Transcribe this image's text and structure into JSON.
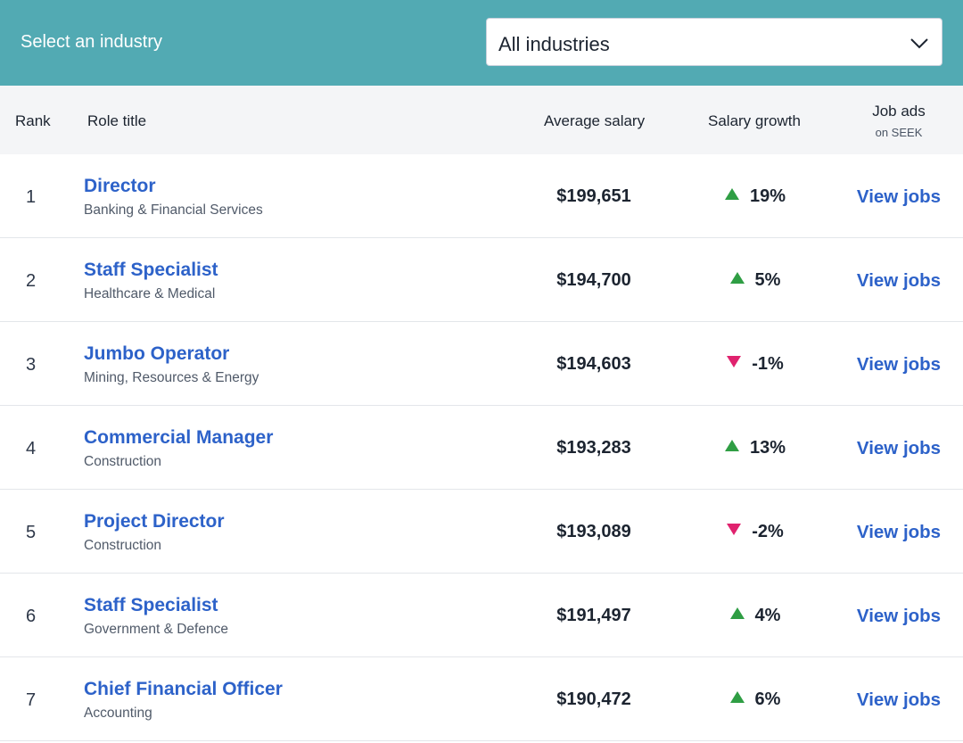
{
  "filter": {
    "label": "Select an industry",
    "selected": "All industries",
    "chevron_icon": "chevron-down-icon"
  },
  "table": {
    "headers": {
      "rank": "Rank",
      "role": "Role title",
      "salary": "Average salary",
      "growth": "Salary growth",
      "jobs": "Job ads",
      "jobs_sub": "on SEEK"
    },
    "rows": [
      {
        "rank": "1",
        "title": "Director",
        "industry": "Banking & Financial Services",
        "salary": "$199,651",
        "trend": "up",
        "growth": "19%",
        "link": "View jobs"
      },
      {
        "rank": "2",
        "title": "Staff Specialist",
        "industry": "Healthcare & Medical",
        "salary": "$194,700",
        "trend": "up",
        "growth": "5%",
        "link": "View jobs"
      },
      {
        "rank": "3",
        "title": "Jumbo Operator",
        "industry": "Mining, Resources & Energy",
        "salary": "$194,603",
        "trend": "down",
        "growth": "-1%",
        "link": "View jobs"
      },
      {
        "rank": "4",
        "title": "Commercial Manager",
        "industry": "Construction",
        "salary": "$193,283",
        "trend": "up",
        "growth": "13%",
        "link": "View jobs"
      },
      {
        "rank": "5",
        "title": "Project Director",
        "industry": "Construction",
        "salary": "$193,089",
        "trend": "down",
        "growth": "-2%",
        "link": "View jobs"
      },
      {
        "rank": "6",
        "title": "Staff Specialist",
        "industry": "Government & Defence",
        "salary": "$191,497",
        "trend": "up",
        "growth": "4%",
        "link": "View jobs"
      },
      {
        "rank": "7",
        "title": "Chief Financial Officer",
        "industry": "Accounting",
        "salary": "$190,472",
        "trend": "up",
        "growth": "6%",
        "link": "View jobs"
      }
    ]
  },
  "colors": {
    "header_bg": "#52aab3",
    "link": "#2d62c9",
    "up": "#2f9e44",
    "down": "#e0226e"
  }
}
